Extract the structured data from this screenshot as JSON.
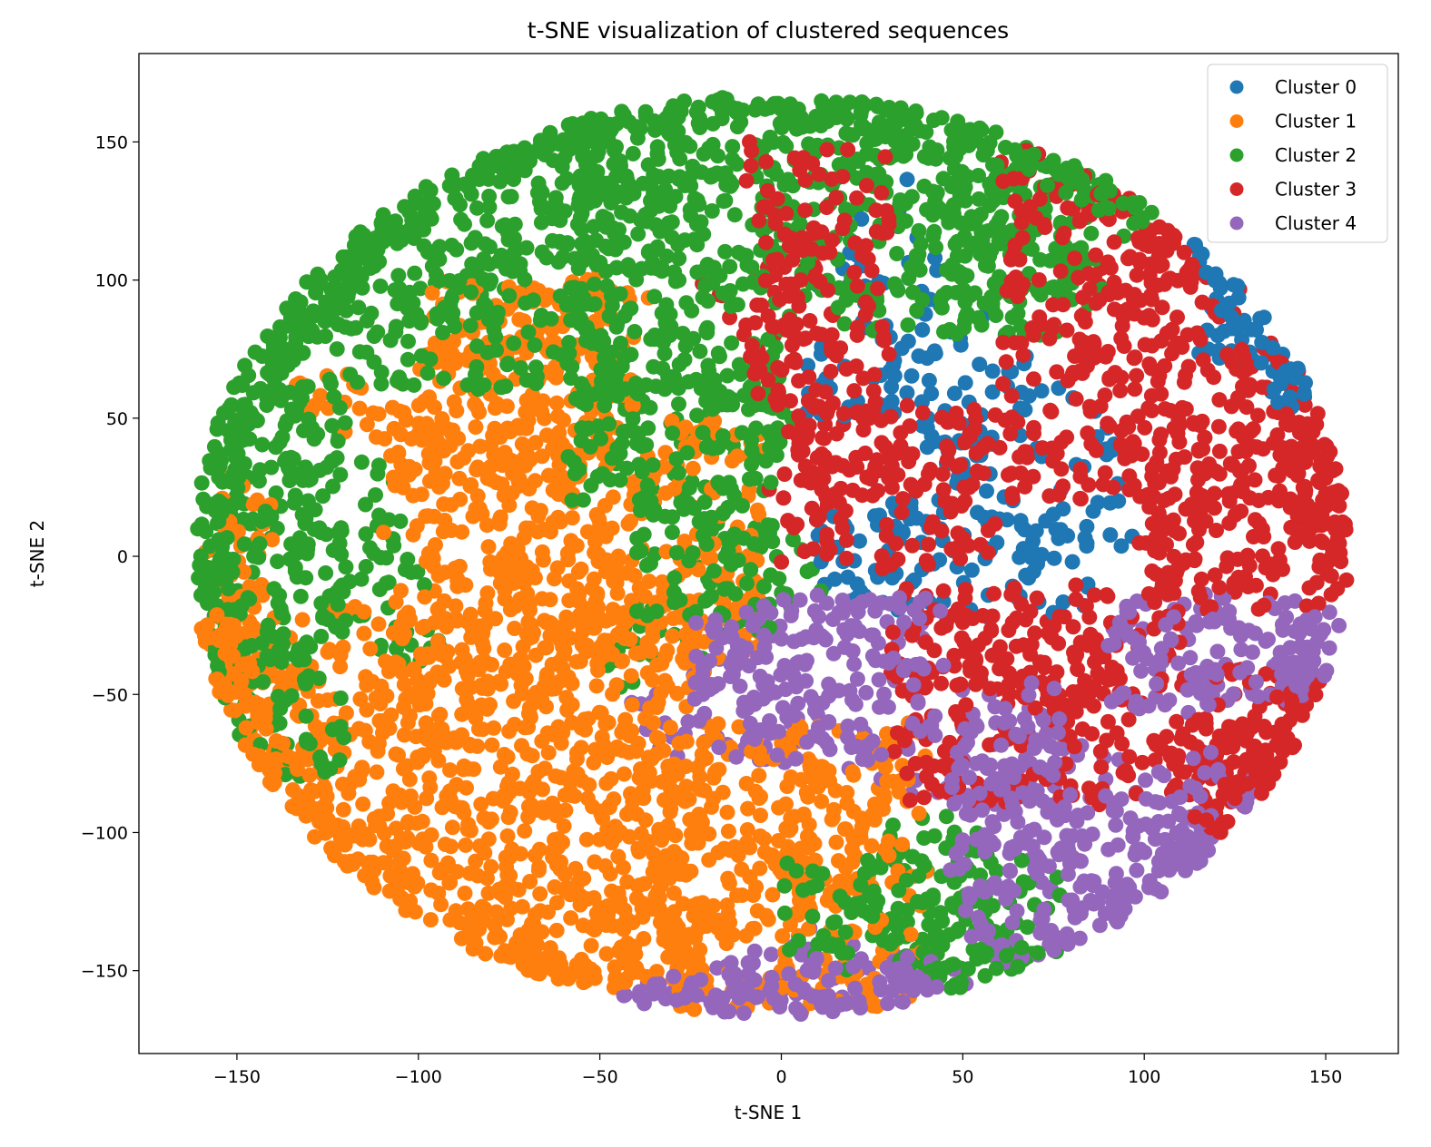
{
  "chart_data": {
    "type": "scatter",
    "title": "t-SNE visualization of clustered sequences",
    "xlabel": "t-SNE 1",
    "ylabel": "t-SNE 2",
    "xlim": [
      -177,
      170
    ],
    "ylim": [
      -180,
      182
    ],
    "xticks": [
      -150,
      -100,
      -50,
      0,
      50,
      100,
      150
    ],
    "yticks": [
      -150,
      -100,
      -50,
      0,
      50,
      100,
      150
    ],
    "xtick_labels": [
      "−150",
      "−100",
      "−50",
      "0",
      "50",
      "100",
      "150"
    ],
    "ytick_labels": [
      "−150",
      "−100",
      "−50",
      "0",
      "50",
      "100",
      "150"
    ],
    "grid": false,
    "legend_position": "top-right",
    "point_extent": {
      "x": [
        -162,
        156
      ],
      "y": [
        -166,
        167
      ]
    },
    "series": [
      {
        "name": "Cluster 0",
        "color": "#1f77b4",
        "regions": [
          {
            "x": [
              20,
              45
            ],
            "y": [
              5,
              22
            ]
          },
          {
            "x": [
              55,
              82
            ],
            "y": [
              -3,
              15
            ]
          },
          {
            "x": [
              40,
              65
            ],
            "y": [
              30,
              50
            ]
          },
          {
            "x": [
              115,
              155
            ],
            "y": [
              70,
              125
            ]
          },
          {
            "x": [
              10,
              30
            ],
            "y": [
              95,
              110
            ]
          },
          {
            "x": [
              25,
              38
            ],
            "y": [
              65,
              80
            ]
          }
        ]
      },
      {
        "name": "Cluster 1",
        "color": "#ff7f0e",
        "regions": [
          {
            "x": [
              -155,
              -20
            ],
            "y": [
              -160,
              -15
            ]
          },
          {
            "x": [
              -110,
              -5
            ],
            "y": [
              -40,
              50
            ]
          },
          {
            "x": [
              -40,
              40
            ],
            "y": [
              -165,
              -60
            ]
          },
          {
            "x": [
              -160,
              -140
            ],
            "y": [
              -100,
              30
            ]
          },
          {
            "x": [
              -100,
              -40
            ],
            "y": [
              40,
              100
            ]
          }
        ]
      },
      {
        "name": "Cluster 2",
        "color": "#2ca02c",
        "regions": [
          {
            "x": [
              -140,
              -40
            ],
            "y": [
              60,
              160
            ]
          },
          {
            "x": [
              -60,
              60
            ],
            "y": [
              80,
              165
            ]
          },
          {
            "x": [
              -160,
              -120
            ],
            "y": [
              -80,
              60
            ]
          },
          {
            "x": [
              -40,
              0
            ],
            "y": [
              -30,
              20
            ]
          },
          {
            "x": [
              -60,
              0
            ],
            "y": [
              20,
              80
            ]
          },
          {
            "x": [
              0,
              80
            ],
            "y": [
              -150,
              -110
            ]
          },
          {
            "x": [
              40,
              90
            ],
            "y": [
              80,
              150
            ]
          }
        ]
      },
      {
        "name": "Cluster 3",
        "color": "#d62728",
        "regions": [
          {
            "x": [
              0,
              60
            ],
            "y": [
              -5,
              55
            ]
          },
          {
            "x": [
              60,
              150
            ],
            "y": [
              20,
              150
            ]
          },
          {
            "x": [
              30,
              110
            ],
            "y": [
              -90,
              -10
            ]
          },
          {
            "x": [
              100,
              150
            ],
            "y": [
              -20,
              40
            ]
          },
          {
            "x": [
              110,
              150
            ],
            "y": [
              -100,
              -40
            ]
          },
          {
            "x": [
              -10,
              30
            ],
            "y": [
              50,
              150
            ]
          }
        ]
      },
      {
        "name": "Cluster 4",
        "color": "#9467bd",
        "regions": [
          {
            "x": [
              -25,
              45
            ],
            "y": [
              -75,
              -15
            ]
          },
          {
            "x": [
              90,
              150
            ],
            "y": [
              -55,
              -20
            ]
          },
          {
            "x": [
              45,
              140
            ],
            "y": [
              -160,
              -70
            ]
          },
          {
            "x": [
              -15,
              50
            ],
            "y": [
              -163,
              -145
            ]
          },
          {
            "x": [
              50,
              80
            ],
            "y": [
              -70,
              -45
            ]
          }
        ]
      }
    ]
  }
}
